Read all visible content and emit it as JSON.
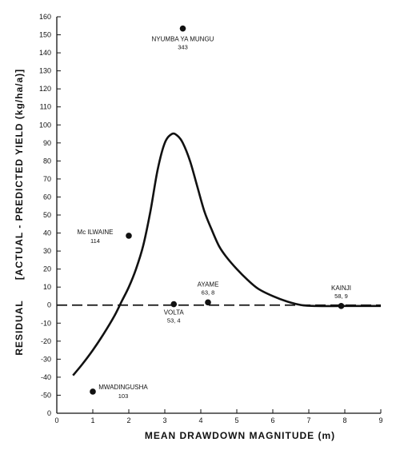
{
  "chart_data": {
    "type": "scatter",
    "title": "",
    "xlabel": "MEAN DRAWDOWN MAGNITUDE (m)",
    "ylabel_outer": "RESIDUAL",
    "ylabel_inner": "[ACTUAL - PREDICTED YIELD (kg/ha/a)]",
    "xlim": [
      0,
      9
    ],
    "ylim": [
      -60,
      160
    ],
    "x_ticks": [
      "0",
      "1",
      "2",
      "3",
      "4",
      "5",
      "6",
      "7",
      "8",
      "9"
    ],
    "y_ticks": [
      "-50",
      "-40",
      "-30",
      "-20",
      "-10",
      "0",
      "10",
      "20",
      "30",
      "40",
      "50",
      "60",
      "70",
      "80",
      "90",
      "100",
      "110",
      "120",
      "130",
      "140",
      "150",
      "160"
    ],
    "grid": false,
    "points": [
      {
        "name": "NYUMBA YA MUNGU",
        "value": "343",
        "x": 3.5,
        "y": 153.5
      },
      {
        "name": "Mc ILWAINE",
        "value": "114",
        "x": 2.0,
        "y": 38.5
      },
      {
        "name": "AYAME",
        "value": "63, 8",
        "x": 4.2,
        "y": 1.5
      },
      {
        "name": "VOLTA",
        "value": "53, 4",
        "x": 3.25,
        "y": 0.5
      },
      {
        "name": "KAINJI",
        "value": "58, 9",
        "x": 7.9,
        "y": -0.5
      },
      {
        "name": "MWADINGUSHA",
        "value": "103",
        "x": 1.0,
        "y": -48
      }
    ],
    "curve": {
      "x": [
        0.45,
        0.7,
        1.0,
        1.3,
        1.6,
        1.8,
        2.0,
        2.2,
        2.4,
        2.6,
        2.8,
        3.0,
        3.2,
        3.35,
        3.5,
        3.7,
        3.9,
        4.1,
        4.3,
        4.5,
        4.7,
        5.0,
        5.3,
        5.6,
        6.0,
        6.4,
        6.8,
        7.2,
        8.0,
        9.0
      ],
      "y": [
        -39,
        -33,
        -25,
        -16,
        -6,
        2,
        10,
        20,
        33,
        52,
        75,
        90,
        95,
        94,
        90,
        80,
        66,
        52,
        42,
        33,
        27,
        20,
        14,
        9,
        5,
        2,
        0,
        -0.5,
        -0.5,
        -0.5
      ]
    },
    "reference_line": {
      "y": 0,
      "style": "dashed"
    }
  }
}
